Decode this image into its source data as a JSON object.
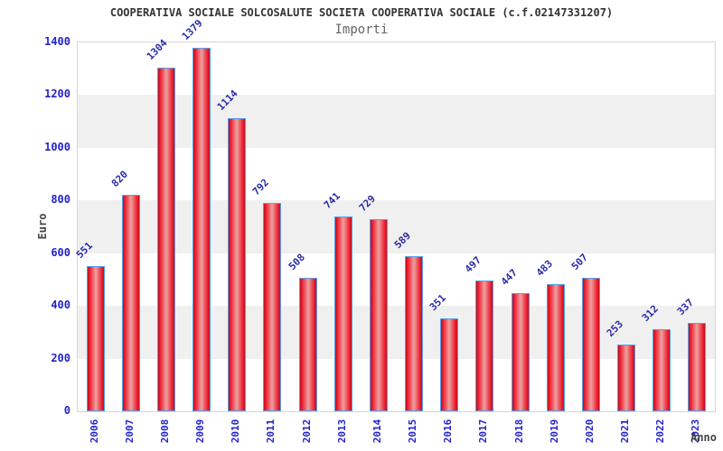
{
  "chart_data": {
    "type": "bar",
    "title": "COOPERATIVA SOCIALE SOLCOSALUTE SOCIETA COOPERATIVA SOCIALE (c.f.02147331207)",
    "subtitle": "Importi",
    "xlabel": "Anno",
    "ylabel": "Euro",
    "categories": [
      "2006",
      "2007",
      "2008",
      "2009",
      "2010",
      "2011",
      "2012",
      "2013",
      "2014",
      "2015",
      "2016",
      "2017",
      "2018",
      "2019",
      "2020",
      "2021",
      "2022",
      "2023"
    ],
    "values": [
      551,
      820,
      1304,
      1379,
      1114,
      792,
      508,
      741,
      729,
      589,
      351,
      497,
      447,
      483,
      507,
      253,
      312,
      337
    ],
    "ylim": [
      0,
      1400
    ],
    "ytick_step": 200,
    "yticks": [
      "0",
      "200",
      "400",
      "600",
      "800",
      "1000",
      "1200",
      "1400"
    ],
    "grid": "alternating-horizontal-bands",
    "legend": "none",
    "colors": {
      "bar_fill_edge": "#c40d1b",
      "bar_fill_center": "#eda1a1",
      "bar_border": "#55a0e8",
      "tick_label": "#2222cc",
      "value_label": "#2b2ba8",
      "band": "#f0f0f0",
      "plot_border": "#d6d6d6",
      "title": "#333333",
      "subtitle": "#666666",
      "axis_title": "#444444",
      "background": "#ffffff"
    }
  }
}
